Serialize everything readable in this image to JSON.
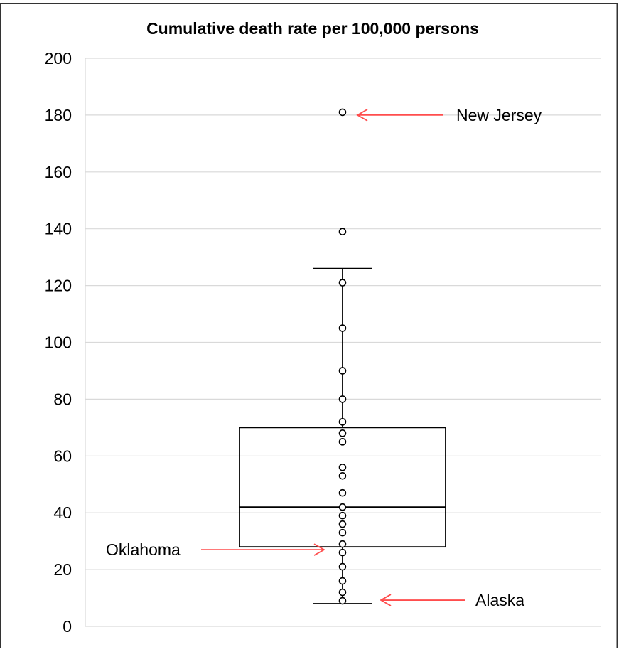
{
  "chart_data": {
    "type": "box",
    "title": "Cumulative death rate per 100,000 persons",
    "xlabel": "",
    "ylabel": "",
    "ylim": [
      0,
      200
    ],
    "yticks": [
      0,
      20,
      40,
      60,
      80,
      100,
      120,
      140,
      160,
      180,
      200
    ],
    "grid": true,
    "box": {
      "whisker_low": 8,
      "q1": 28,
      "median": 42,
      "q3": 70,
      "whisker_high": 126
    },
    "points": [
      181,
      139,
      121,
      105,
      90,
      80,
      72,
      68,
      65,
      56,
      53,
      47,
      42,
      39,
      36,
      33,
      29,
      26,
      21,
      16,
      12,
      9
    ],
    "annotations": [
      {
        "text": "New Jersey",
        "value": 181
      },
      {
        "text": "Oklahoma",
        "value": 27
      },
      {
        "text": "Alaska",
        "value": 8
      }
    ],
    "colors": {
      "axis": "#000000",
      "grid": "#d9d9d9",
      "box": "#000000",
      "point": "#000000",
      "arrow": "#ff4d4d",
      "frame": "#333333"
    }
  }
}
